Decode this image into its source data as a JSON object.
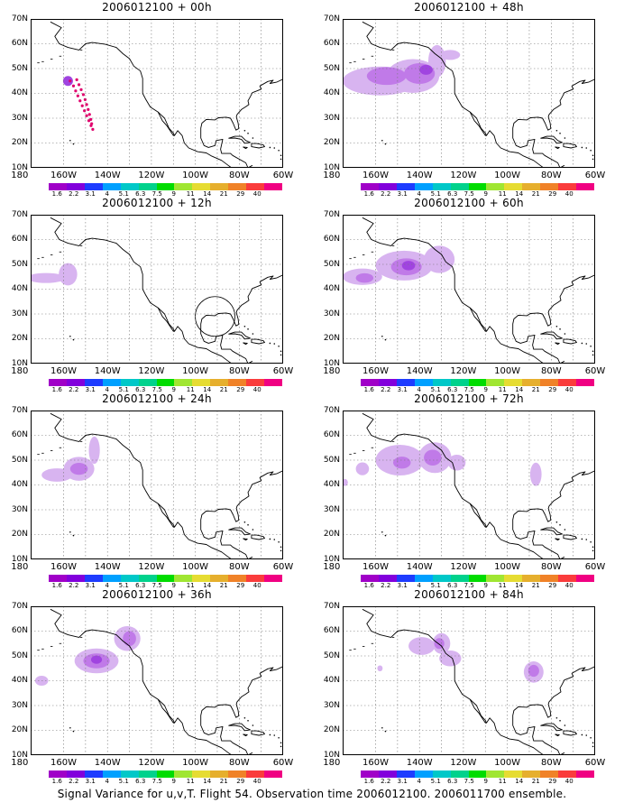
{
  "panels": [
    {
      "title": "2006012100 + 00h"
    },
    {
      "title": "2006012100 + 48h"
    },
    {
      "title": "2006012100 + 12h"
    },
    {
      "title": "2006012100 + 60h"
    },
    {
      "title": "2006012100 + 24h"
    },
    {
      "title": "2006012100 + 72h"
    },
    {
      "title": "2006012100 + 36h"
    },
    {
      "title": "2006012100 + 84h"
    }
  ],
  "axes": {
    "lat_labels": [
      "70N",
      "60N",
      "50N",
      "40N",
      "30N",
      "20N",
      "10N"
    ],
    "lon_labels": [
      "180",
      "160W",
      "140W",
      "120W",
      "100W",
      "80W",
      "60W"
    ]
  },
  "colorbar": {
    "labels": [
      "1.6",
      "2.2",
      "3.1",
      "4",
      "5.1",
      "6.3",
      "7.5",
      "9",
      "11",
      "14",
      "21",
      "29",
      "40"
    ],
    "colors": [
      "#a000c8",
      "#8200dc",
      "#1e3cff",
      "#00a0ff",
      "#00c8c8",
      "#00d28c",
      "#00dc00",
      "#a0e632",
      "#e6dc32",
      "#e6af2d",
      "#f08228",
      "#fa3c3c",
      "#f00082"
    ]
  },
  "footer": "Signal Variance for u,v,T. Flight 54. Observation time 2006012100. 2006011700 ensemble."
}
